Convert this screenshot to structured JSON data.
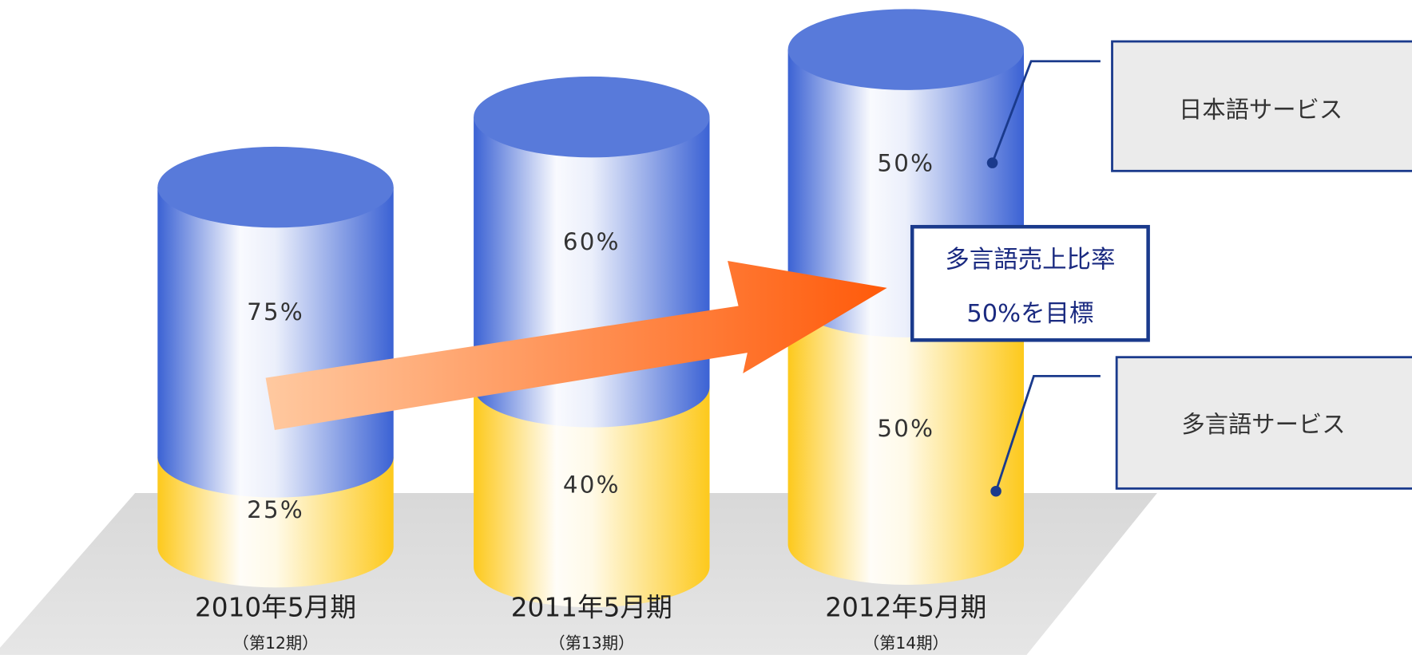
{
  "chart_data": {
    "type": "stacked_cylinder",
    "categories": [
      "2010年5月期",
      "2011年5月期",
      "2012年5月期"
    ],
    "category_sublabels": [
      "（第12期）",
      "（第13期）",
      "（第14期）"
    ],
    "series": [
      {
        "name": "多言語サービス",
        "color": "#fdc91c",
        "values": [
          25,
          40,
          50
        ],
        "value_labels": [
          "25%",
          "40%",
          "50%"
        ]
      },
      {
        "name": "日本語サービス",
        "color": "#3b62d4",
        "values": [
          75,
          60,
          50
        ],
        "value_labels": [
          "75%",
          "60%",
          "50%"
        ]
      }
    ],
    "annotation": [
      "多言語売上比率",
      "50%を目標"
    ]
  }
}
